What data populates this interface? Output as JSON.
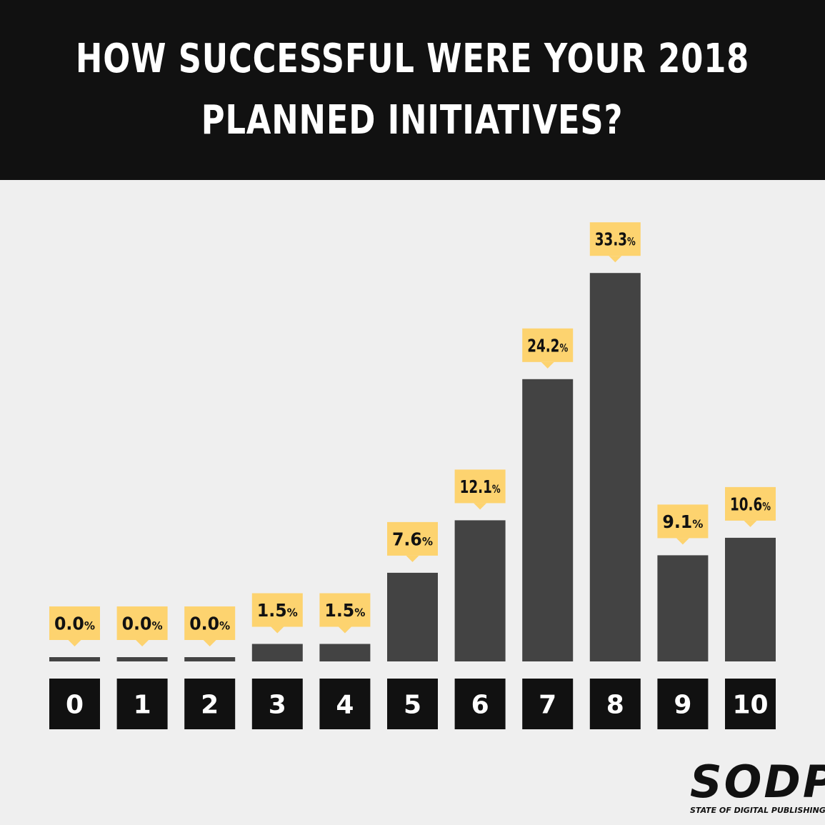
{
  "header": {
    "title_line1": "HOW SUCCESSFUL WERE YOUR 2018",
    "title_line2": "PLANNED INITIATIVES?"
  },
  "logo": {
    "mark": "SODP",
    "subtitle": "STATE OF DIGITAL PUBLISHING"
  },
  "colors": {
    "header_bg": "#111111",
    "background": "#efefef",
    "bar": "#434343",
    "callout": "#fdd36f",
    "category_box": "#111111"
  },
  "chart_data": {
    "type": "bar",
    "title": "HOW SUCCESSFUL WERE YOUR 2018 PLANNED INITIATIVES?",
    "categories": [
      "0",
      "1",
      "2",
      "3",
      "4",
      "5",
      "6",
      "7",
      "8",
      "9",
      "10"
    ],
    "values": [
      0.0,
      0.0,
      0.0,
      1.5,
      1.5,
      7.6,
      12.1,
      24.2,
      33.3,
      9.1,
      10.6
    ],
    "value_labels": [
      "0.0",
      "0.0",
      "0.0",
      "1.5",
      "1.5",
      "7.6",
      "12.1",
      "24.2",
      "33.3",
      "9.1",
      "10.6"
    ],
    "unit": "%",
    "xlabel": "",
    "ylabel": "",
    "grid": false,
    "legend": "none"
  }
}
